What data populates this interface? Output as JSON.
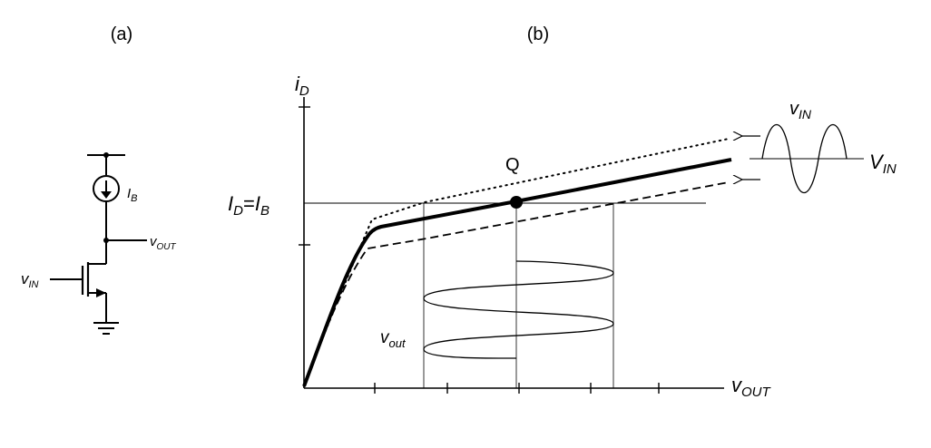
{
  "panel_a": {
    "label": "(a)",
    "current_source": {
      "main": "I",
      "sub": "B"
    },
    "output_node": {
      "main": "v",
      "sub": "OUT"
    },
    "input": {
      "main": "v",
      "sub": "IN"
    }
  },
  "panel_b": {
    "label": "(b)",
    "y_axis": {
      "main": "i",
      "sub": "D"
    },
    "x_axis": {
      "main": "v",
      "sub": "OUT"
    },
    "bias_level": {
      "p1": "I",
      "s1": "D",
      "eq": "=",
      "p2": "I",
      "s2": "B"
    },
    "q_point": "Q",
    "output_swing": {
      "main": "v",
      "sub": "out"
    },
    "small_signal_in": {
      "main": "v",
      "sub": "IN"
    },
    "dc_in": {
      "main": "V",
      "sub": "IN"
    }
  },
  "colors": {
    "ink": "#000000",
    "background": "#ffffff"
  }
}
